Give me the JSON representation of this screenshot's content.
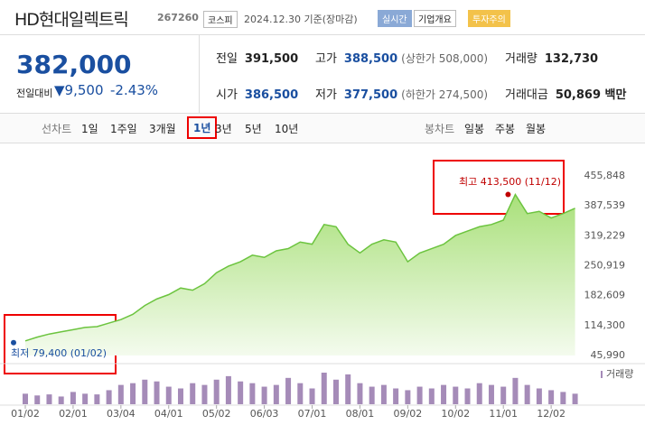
{
  "header": {
    "title": "HD현대일렉트릭",
    "code": "267260",
    "market": "코스피",
    "date": "2024.12.30 기준(장마감)",
    "buttons": [
      "실시간",
      "기업개요",
      "투자주의"
    ]
  },
  "quote": {
    "price": "382,000",
    "change_label": "전일대비",
    "change": "9,500",
    "change_pct": "-2.43%",
    "rows": [
      [
        [
          "전일",
          "391,500",
          null
        ],
        [
          "고가",
          "388,500",
          "(상한가 508,000)"
        ],
        [
          "거래량",
          "132,730",
          null
        ]
      ],
      [
        [
          "시가",
          "386,500",
          null
        ],
        [
          "저가",
          "377,500",
          "(하한가 274,500)"
        ],
        [
          "거래대금",
          "50,869 백만",
          null
        ]
      ]
    ]
  },
  "tabs": {
    "line_label": "선차트",
    "line": [
      "1일",
      "1주일",
      "3개월",
      "1년",
      "3년",
      "5년",
      "10년"
    ],
    "candle_label": "봉차트",
    "candle": [
      "일봉",
      "주봉",
      "월봉"
    ]
  },
  "chart_data": {
    "type": "area",
    "color": "#6cc43f",
    "grid": false,
    "categories": [
      "01/02",
      null,
      null,
      null,
      "02/01",
      null,
      null,
      null,
      "03/04",
      null,
      null,
      null,
      "04/01",
      null,
      null,
      null,
      "05/02",
      null,
      null,
      null,
      "06/03",
      null,
      null,
      null,
      "07/01",
      null,
      null,
      null,
      "08/01",
      null,
      null,
      null,
      "09/02",
      null,
      null,
      null,
      "10/02",
      null,
      null,
      null,
      "11/01",
      null,
      null,
      null,
      "12/02",
      null,
      null
    ],
    "values": [
      79400,
      88000,
      95000,
      100000,
      105000,
      110000,
      112000,
      120000,
      128000,
      140000,
      160000,
      175000,
      185000,
      200000,
      195000,
      210000,
      235000,
      250000,
      260000,
      275000,
      270000,
      285000,
      290000,
      305000,
      300000,
      345000,
      340000,
      300000,
      280000,
      300000,
      310000,
      305000,
      260000,
      280000,
      290000,
      300000,
      320000,
      330000,
      340000,
      345000,
      355000,
      413500,
      370000,
      375000,
      360000,
      370000,
      382000
    ],
    "volume_label": "거래량",
    "volume_color": "#a58bb8",
    "volume": [
      30,
      25,
      28,
      22,
      35,
      30,
      28,
      40,
      55,
      60,
      70,
      65,
      50,
      45,
      60,
      55,
      70,
      80,
      65,
      60,
      50,
      55,
      75,
      60,
      45,
      90,
      70,
      85,
      60,
      50,
      55,
      45,
      40,
      50,
      45,
      55,
      50,
      45,
      60,
      55,
      50,
      75,
      55,
      45,
      40,
      35,
      30
    ],
    "ylim": [
      45990,
      455848
    ],
    "yticks": [
      {
        "value": 45990,
        "label": "45,990"
      },
      {
        "value": 114300,
        "label": "114,300"
      },
      {
        "value": 182609,
        "label": "182,609"
      },
      {
        "value": 250919,
        "label": "250,919"
      },
      {
        "value": 319229,
        "label": "319,229"
      },
      {
        "value": 387539,
        "label": "387,539"
      },
      {
        "value": 455848,
        "label": "455,848"
      }
    ],
    "annotations": [
      {
        "label": "최고 413,500 (11/12)",
        "color": "#c00000"
      },
      {
        "label": "최저 79,400 (01/02)",
        "color": "#1a4fa0"
      }
    ]
  }
}
